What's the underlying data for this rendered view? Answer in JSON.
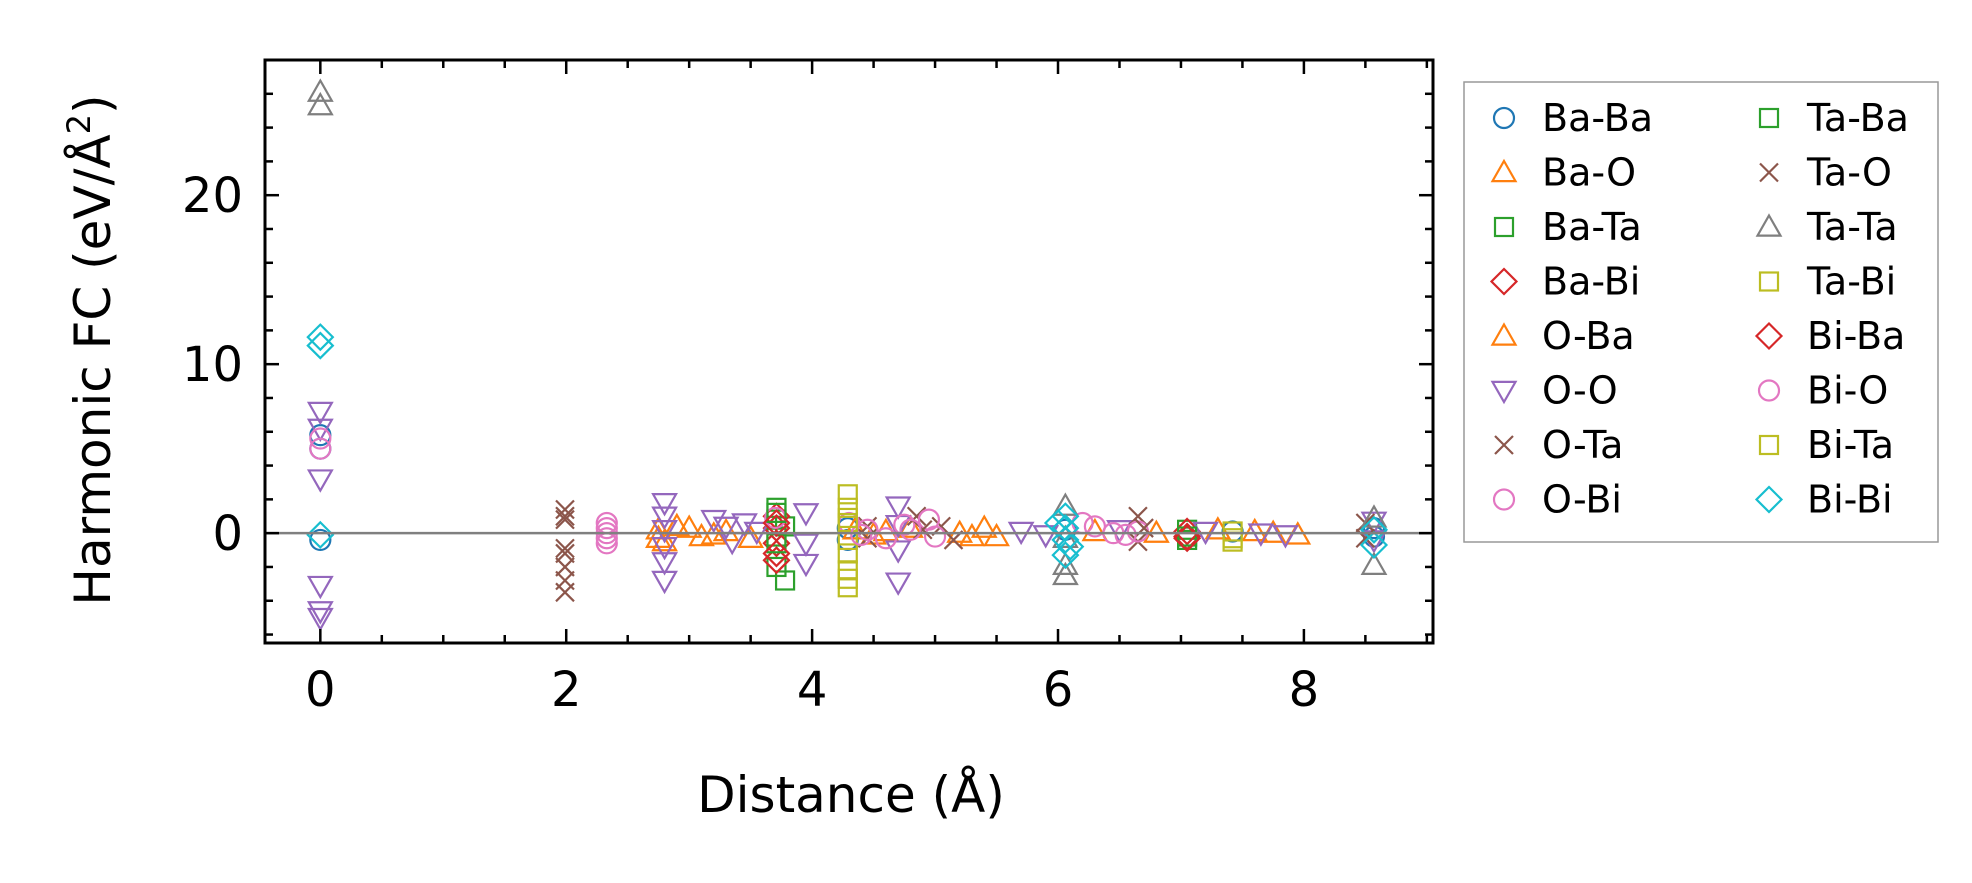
{
  "chart_data": {
    "type": "scatter",
    "title": "",
    "xlabel": "Distance (Å)",
    "ylabel": "Harmonic FC (eV/Å²)",
    "ylabel_main": "Harmonic FC (eV/Å",
    "ylabel_sup": "2",
    "ylabel_close": ")",
    "xlim": [
      -0.45,
      9.05
    ],
    "ylim": [
      -6.5,
      28.0
    ],
    "xticks": [
      0,
      2,
      4,
      6,
      8
    ],
    "xtick_labels": [
      "0",
      "2",
      "4",
      "6",
      "8"
    ],
    "yticks": [
      0,
      10,
      20
    ],
    "ytick_labels": [
      "0",
      "10",
      "20"
    ],
    "zero_line": 0,
    "grid": false,
    "legend_position": "outside right",
    "series": [
      {
        "name": "Ba-Ba",
        "color": "#1f77b4",
        "marker": "circle",
        "points": [
          [
            0,
            5.0
          ],
          [
            0,
            5.8
          ],
          [
            0,
            -0.4
          ],
          [
            4.29,
            0.3
          ],
          [
            4.29,
            -0.4
          ],
          [
            6.06,
            0.2
          ],
          [
            7.42,
            0.1
          ],
          [
            8.57,
            0.3
          ],
          [
            8.57,
            -0.2
          ]
        ]
      },
      {
        "name": "Ba-O",
        "color": "#ff7f0e",
        "marker": "triangle-up",
        "points": [
          [
            2.75,
            0.2
          ],
          [
            2.8,
            -0.5
          ],
          [
            3.0,
            0.3
          ],
          [
            3.1,
            -0.2
          ],
          [
            3.3,
            0.1
          ],
          [
            3.5,
            -0.3
          ],
          [
            4.35,
            0.2
          ],
          [
            4.5,
            -0.1
          ],
          [
            4.8,
            0.3
          ],
          [
            5.2,
            0.0
          ],
          [
            5.4,
            0.3
          ],
          [
            5.5,
            -0.2
          ],
          [
            6.3,
            0.1
          ],
          [
            6.8,
            0.0
          ],
          [
            7.3,
            0.2
          ],
          [
            7.75,
            0.0
          ],
          [
            7.95,
            -0.1
          ]
        ]
      },
      {
        "name": "Ba-Ta",
        "color": "#2ca02c",
        "marker": "square",
        "points": [
          [
            3.71,
            1.5
          ],
          [
            3.71,
            -0.2
          ],
          [
            3.71,
            0.8
          ],
          [
            3.71,
            -2.0
          ],
          [
            3.78,
            -2.8
          ],
          [
            3.78,
            0.4
          ],
          [
            7.05,
            -0.4
          ],
          [
            7.05,
            0.2
          ]
        ]
      },
      {
        "name": "Ba-Bi",
        "color": "#d62728",
        "marker": "diamond",
        "points": [
          [
            3.71,
            1.0
          ],
          [
            3.71,
            0.3
          ],
          [
            3.71,
            -0.6
          ],
          [
            3.71,
            -1.6
          ],
          [
            7.05,
            0.1
          ],
          [
            7.05,
            -0.2
          ]
        ]
      },
      {
        "name": "O-Ba",
        "color": "#ff7f0e",
        "marker": "triangle-up",
        "points": [
          [
            2.75,
            -0.3
          ],
          [
            2.9,
            0.4
          ],
          [
            3.2,
            -0.1
          ],
          [
            4.6,
            0.1
          ],
          [
            5.3,
            -0.2
          ],
          [
            7.6,
            0.1
          ]
        ]
      },
      {
        "name": "O-O",
        "color": "#9467bd",
        "marker": "triangle-down",
        "points": [
          [
            0,
            7.2
          ],
          [
            0,
            6.2
          ],
          [
            0,
            3.2
          ],
          [
            0,
            -3.1
          ],
          [
            0,
            -4.6
          ],
          [
            0,
            -5.0
          ],
          [
            2.8,
            1.8
          ],
          [
            2.8,
            1.0
          ],
          [
            2.8,
            0.2
          ],
          [
            2.8,
            -0.8
          ],
          [
            2.8,
            -1.7
          ],
          [
            2.8,
            -2.8
          ],
          [
            3.2,
            0.8
          ],
          [
            3.3,
            0.4
          ],
          [
            3.35,
            -0.5
          ],
          [
            3.45,
            0.6
          ],
          [
            3.55,
            0.1
          ],
          [
            3.95,
            1.2
          ],
          [
            3.95,
            -0.6
          ],
          [
            3.95,
            -1.8
          ],
          [
            4.7,
            1.6
          ],
          [
            4.7,
            0.5
          ],
          [
            4.7,
            -1.0
          ],
          [
            4.7,
            -2.9
          ],
          [
            5.7,
            0.1
          ],
          [
            5.9,
            -0.1
          ],
          [
            6.5,
            0.2
          ],
          [
            7.2,
            0.1
          ],
          [
            7.65,
            0.0
          ],
          [
            7.85,
            -0.1
          ],
          [
            8.57,
            0.7
          ],
          [
            8.57,
            -0.4
          ]
        ]
      },
      {
        "name": "O-Ta",
        "color": "#8c564b",
        "marker": "cross",
        "points": [
          [
            1.99,
            1.4
          ],
          [
            1.99,
            0.8
          ],
          [
            1.99,
            -1.2
          ],
          [
            1.99,
            -2.0
          ],
          [
            1.99,
            -2.8
          ],
          [
            1.99,
            -3.5
          ],
          [
            4.45,
            0.4
          ],
          [
            4.45,
            -0.3
          ],
          [
            4.85,
            1.0
          ],
          [
            5.05,
            0.4
          ],
          [
            5.15,
            -0.4
          ],
          [
            6.65,
            1.0
          ],
          [
            6.65,
            -0.5
          ],
          [
            8.5,
            0.6
          ],
          [
            8.5,
            -0.3
          ]
        ]
      },
      {
        "name": "O-Bi",
        "color": "#e377c2",
        "marker": "circle",
        "points": [
          [
            0,
            5.6
          ],
          [
            0,
            5.0
          ],
          [
            2.33,
            0.6
          ],
          [
            2.33,
            0.0
          ],
          [
            2.33,
            -0.6
          ],
          [
            3.7,
            0.9
          ],
          [
            4.3,
            0.6
          ],
          [
            4.45,
            0.2
          ],
          [
            4.6,
            -0.3
          ],
          [
            4.75,
            0.5
          ],
          [
            4.95,
            0.8
          ],
          [
            5.0,
            -0.2
          ],
          [
            6.2,
            0.6
          ],
          [
            6.45,
            0.0
          ],
          [
            6.65,
            0.1
          ]
        ]
      },
      {
        "name": "Ta-Ba",
        "color": "#2ca02c",
        "marker": "square",
        "points": [
          [
            3.71,
            1.2
          ],
          [
            3.71,
            -0.6
          ],
          [
            7.05,
            -0.2
          ]
        ]
      },
      {
        "name": "Ta-O",
        "color": "#8c564b",
        "marker": "cross",
        "points": [
          [
            1.99,
            1.0
          ],
          [
            1.99,
            -0.9
          ],
          [
            4.9,
            0.2
          ],
          [
            6.7,
            0.3
          ]
        ]
      },
      {
        "name": "Ta-Ta",
        "color": "#7f7f7f",
        "marker": "triangle-up",
        "points": [
          [
            0,
            26.1
          ],
          [
            0,
            25.3
          ],
          [
            6.06,
            1.6
          ],
          [
            6.06,
            -0.3
          ],
          [
            6.06,
            -1.9
          ],
          [
            6.06,
            -2.5
          ],
          [
            8.57,
            0.9
          ],
          [
            8.57,
            -1.9
          ]
        ]
      },
      {
        "name": "Ta-Bi",
        "color": "#bcbd22",
        "marker": "square",
        "points": [
          [
            4.29,
            2.3
          ],
          [
            4.29,
            1.5
          ],
          [
            4.29,
            0.6
          ],
          [
            4.29,
            -0.4
          ],
          [
            4.29,
            -1.2
          ],
          [
            4.29,
            -2.2
          ],
          [
            4.29,
            -3.2
          ],
          [
            7.42,
            -0.5
          ],
          [
            7.42,
            0.1
          ]
        ]
      },
      {
        "name": "Bi-Ba",
        "color": "#d62728",
        "marker": "diamond",
        "points": [
          [
            3.71,
            0.6
          ],
          [
            3.71,
            -1.2
          ],
          [
            7.05,
            -0.3
          ]
        ]
      },
      {
        "name": "Bi-O",
        "color": "#e377c2",
        "marker": "circle",
        "points": [
          [
            2.33,
            0.3
          ],
          [
            2.33,
            -0.3
          ],
          [
            4.4,
            -0.1
          ],
          [
            4.8,
            0.2
          ],
          [
            6.3,
            0.4
          ],
          [
            6.55,
            -0.1
          ]
        ]
      },
      {
        "name": "Bi-Ta",
        "color": "#bcbd22",
        "marker": "square",
        "points": [
          [
            4.29,
            0.9
          ],
          [
            4.29,
            -2.7
          ],
          [
            7.42,
            -0.3
          ]
        ]
      },
      {
        "name": "Bi-Bi",
        "color": "#17becf",
        "marker": "diamond",
        "points": [
          [
            0,
            11.6
          ],
          [
            0,
            11.1
          ],
          [
            0,
            -0.1
          ],
          [
            6.06,
            1.0
          ],
          [
            6.06,
            0.3
          ],
          [
            6.06,
            -0.4
          ],
          [
            6.06,
            -1.3
          ],
          [
            6.0,
            0.6
          ],
          [
            6.1,
            -0.8
          ],
          [
            8.57,
            -0.7
          ],
          [
            8.57,
            0.2
          ]
        ]
      }
    ]
  }
}
